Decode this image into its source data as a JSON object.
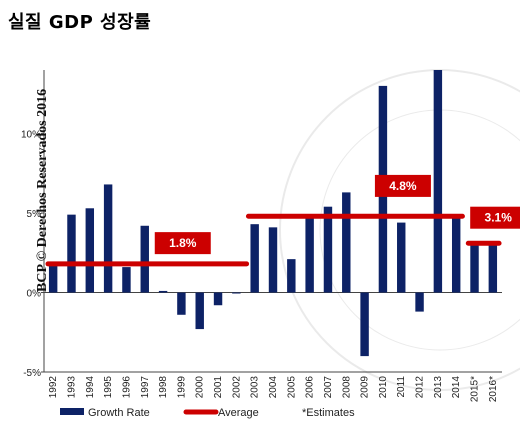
{
  "title": "실질 GDP 성장률",
  "watermark": "BCP © Derechos Reservados 2016",
  "colors": {
    "bar": "#0d2266",
    "average": "#cc0000",
    "axis": "#444444"
  },
  "chart_data": {
    "type": "bar",
    "title": "실질 GDP 성장률",
    "xlabel": "",
    "ylabel": "",
    "ylim": [
      -5,
      14
    ],
    "yticks": [
      {
        "value": 10,
        "label": "10%"
      },
      {
        "value": 5,
        "label": "5%"
      },
      {
        "value": 0,
        "label": "0%"
      },
      {
        "value": -5,
        "label": "-5%"
      }
    ],
    "categories": [
      "1992",
      "1993",
      "1994",
      "1995",
      "1996",
      "1997",
      "1998",
      "1999",
      "2000",
      "2001",
      "2002",
      "2003",
      "2004",
      "2005",
      "2006",
      "2007",
      "2008",
      "2009",
      "2010",
      "2011",
      "2012",
      "2013",
      "2014",
      "2015*",
      "2016*"
    ],
    "series": [
      {
        "name": "Growth Rate",
        "values": [
          1.7,
          4.9,
          5.3,
          6.8,
          1.6,
          4.2,
          0.1,
          -1.4,
          -2.3,
          -0.8,
          0.0,
          4.3,
          4.1,
          2.1,
          4.7,
          5.4,
          6.3,
          -4.0,
          13.0,
          4.4,
          -1.2,
          14.0,
          4.7,
          3.1,
          3.1
        ]
      }
    ],
    "averages": [
      {
        "label": "1.8%",
        "value": 1.8,
        "from": "1992",
        "to": "2002"
      },
      {
        "label": "4.8%",
        "value": 4.8,
        "from": "2003",
        "to": "2014"
      },
      {
        "label": "3.1%",
        "value": 3.1,
        "from": "2015*",
        "to": "2016*"
      }
    ],
    "legend": {
      "position": "bottom",
      "items": [
        {
          "label": "Growth Rate",
          "kind": "bar"
        },
        {
          "label": "Average",
          "kind": "line"
        },
        {
          "label": "*Estimates",
          "kind": "text"
        }
      ]
    },
    "grid": false
  }
}
